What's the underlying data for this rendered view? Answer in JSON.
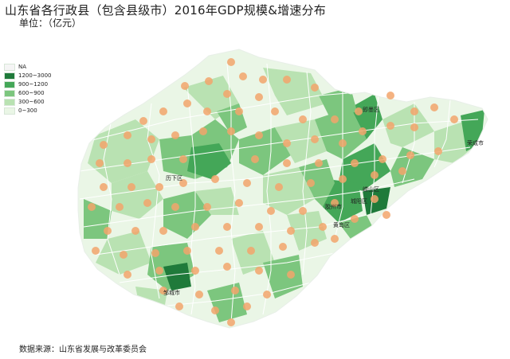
{
  "title": "山东省各行政县（包含县级市）2016年GDP规模&增速分布",
  "unit": "单位：（亿元）",
  "legend": [
    {
      "label": "NA",
      "color": "#f5f5f5"
    },
    {
      "label": "1200~3000",
      "color": "#1f7a3a"
    },
    {
      "label": "900~1200",
      "color": "#44a758"
    },
    {
      "label": "600~900",
      "color": "#7cc67e"
    },
    {
      "label": "300~600",
      "color": "#b9e2b2"
    },
    {
      "label": "0~300",
      "color": "#eaf6e6"
    }
  ],
  "city_labels": [
    "黄岛区",
    "历下区",
    "邹城市",
    "荣成市",
    "崂山区",
    "城阳区",
    "即墨区",
    "胶州市"
  ],
  "region_labels": {
    "a": "黄岛区",
    "b": "历下区",
    "c": "邹城市",
    "d": "荣成市",
    "e": "崂山区",
    "f": "城阳区",
    "g": "即墨区",
    "h": "胶州市"
  },
  "source": "数据来源：山东省发展与改革委员会",
  "colors": {
    "dot": "#f2a56b",
    "border": "#ffffff"
  }
}
